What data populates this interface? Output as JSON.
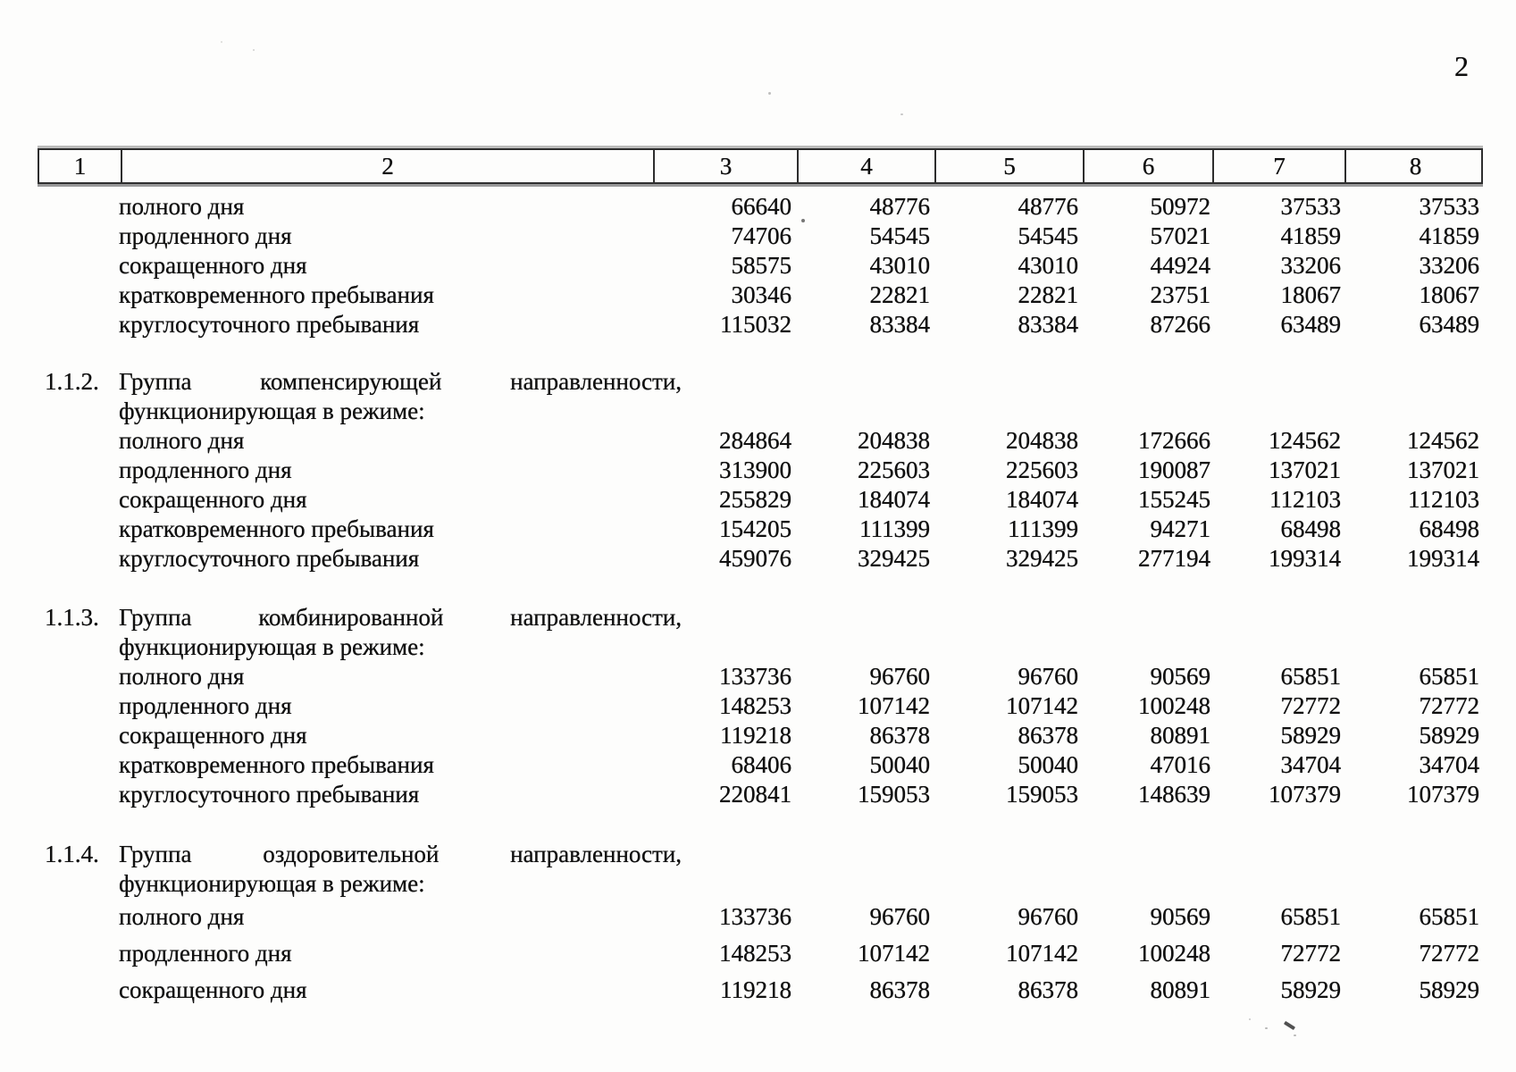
{
  "page": {
    "number": "2"
  },
  "table_header": {
    "columns": [
      "1",
      "2",
      "3",
      "4",
      "5",
      "6",
      "7",
      "8"
    ]
  },
  "sections": [
    {
      "id": "",
      "title_line1_words": [],
      "title_line2": "",
      "rows": [
        {
          "label": "полного дня",
          "values": [
            "66640",
            "48776",
            "48776",
            "50972",
            "37533",
            "37533"
          ]
        },
        {
          "label": "продленного дня",
          "values": [
            "74706",
            "54545",
            "54545",
            "57021",
            "41859",
            "41859"
          ]
        },
        {
          "label": "сокращенного дня",
          "values": [
            "58575",
            "43010",
            "43010",
            "44924",
            "33206",
            "33206"
          ]
        },
        {
          "label": "кратковременного пребывания",
          "values": [
            "30346",
            "22821",
            "22821",
            "23751",
            "18067",
            "18067"
          ]
        },
        {
          "label": "круглосуточного пребывания",
          "values": [
            "115032",
            "83384",
            "83384",
            "87266",
            "63489",
            "63489"
          ]
        }
      ]
    },
    {
      "id": "1.1.2.",
      "title_line1_words": [
        "Группа",
        "компенсирующей",
        "направленности,"
      ],
      "title_line2": "функционирующая в режиме:",
      "rows": [
        {
          "label": "полного дня",
          "values": [
            "284864",
            "204838",
            "204838",
            "172666",
            "124562",
            "124562"
          ]
        },
        {
          "label": "продленного дня",
          "values": [
            "313900",
            "225603",
            "225603",
            "190087",
            "137021",
            "137021"
          ]
        },
        {
          "label": "сокращенного дня",
          "values": [
            "255829",
            "184074",
            "184074",
            "155245",
            "112103",
            "112103"
          ]
        },
        {
          "label": "кратковременного пребывания",
          "values": [
            "154205",
            "111399",
            "111399",
            "94271",
            "68498",
            "68498"
          ]
        },
        {
          "label": "круглосуточного пребывания",
          "values": [
            "459076",
            "329425",
            "329425",
            "277194",
            "199314",
            "199314"
          ]
        }
      ]
    },
    {
      "id": "1.1.3.",
      "title_line1_words": [
        "Группа",
        "комбинированной",
        "направленности,"
      ],
      "title_line2": "функционирующая в режиме:",
      "rows": [
        {
          "label": "полного дня",
          "values": [
            "133736",
            "96760",
            "96760",
            "90569",
            "65851",
            "65851"
          ]
        },
        {
          "label": "продленного дня",
          "values": [
            "148253",
            "107142",
            "107142",
            "100248",
            "72772",
            "72772"
          ]
        },
        {
          "label": "сокращенного дня",
          "values": [
            "119218",
            "86378",
            "86378",
            "80891",
            "58929",
            "58929"
          ]
        },
        {
          "label": "кратковременного пребывания",
          "values": [
            "68406",
            "50040",
            "50040",
            "47016",
            "34704",
            "34704"
          ]
        },
        {
          "label": "круглосуточного пребывания",
          "values": [
            "220841",
            "159053",
            "159053",
            "148639",
            "107379",
            "107379"
          ]
        }
      ]
    },
    {
      "id": "1.1.4.",
      "title_line1_words": [
        "Группа",
        "оздоровительной",
        "направленности,"
      ],
      "title_line2": "функционирующая в режиме:",
      "rows": [
        {
          "label": "полного дня",
          "values": [
            "133736",
            "96760",
            "96760",
            "90569",
            "65851",
            "65851"
          ]
        },
        {
          "label": "продленного дня",
          "values": [
            "148253",
            "107142",
            "107142",
            "100248",
            "72772",
            "72772"
          ]
        },
        {
          "label": "сокращенного дня",
          "values": [
            "119218",
            "86378",
            "86378",
            "80891",
            "58929",
            "58929"
          ]
        }
      ]
    }
  ]
}
